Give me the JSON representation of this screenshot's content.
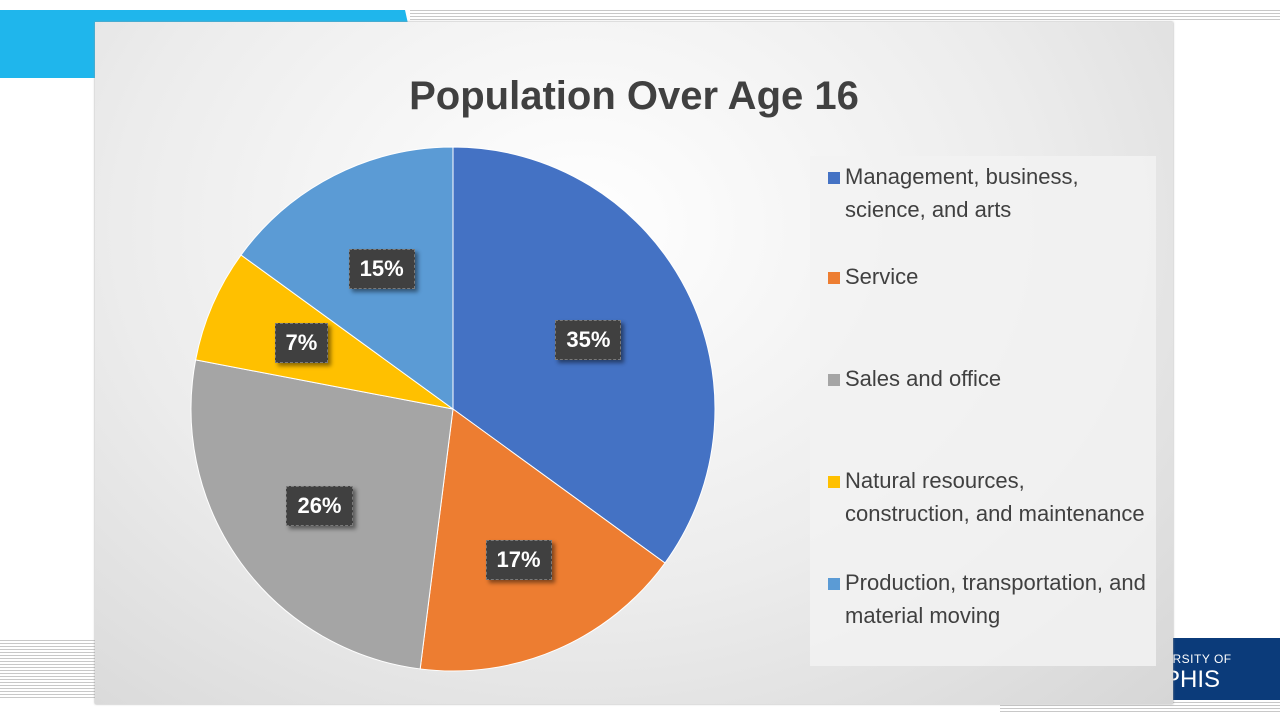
{
  "slide": {
    "logo_line1": "ERSITY OF",
    "logo_line2": "PHIS"
  },
  "chart_data": {
    "type": "pie",
    "title": "Population Over Age 16",
    "legend_position": "right",
    "slices": [
      {
        "label": "Management, business, science, and arts",
        "value": 35,
        "display": "35%",
        "color": "#4472c4"
      },
      {
        "label": "Service",
        "value": 17,
        "display": "17%",
        "color": "#ed7d31"
      },
      {
        "label": "Sales and office",
        "value": 26,
        "display": "26%",
        "color": "#a5a5a5"
      },
      {
        "label": "Natural resources, construction, and maintenance",
        "value": 7,
        "display": "7%",
        "color": "#ffc000"
      },
      {
        "label": "Production, transportation, and material moving",
        "value": 15,
        "display": "15%",
        "color": "#5b9bd5"
      }
    ]
  }
}
